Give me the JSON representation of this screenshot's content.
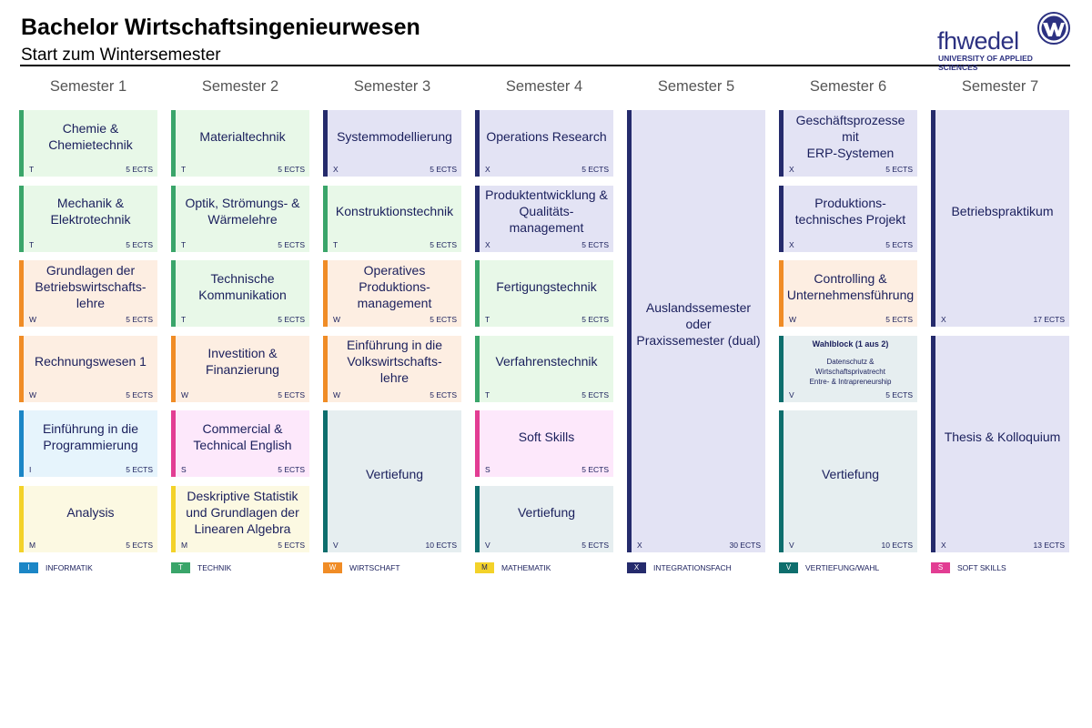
{
  "header": {
    "title": "Bachelor Wirtschaftsingenieurwesen",
    "subtitle": "Start zum Wintersemester"
  },
  "logo": {
    "wordmark": "fhwedel",
    "tagline": "UNIVERSITY OF APPLIED SCIENCES",
    "icon": "fh-wedel-emblem-icon"
  },
  "colors": {
    "I": "#1b86c6",
    "T": "#3aa56a",
    "W": "#f08c26",
    "M": "#f3d229",
    "X": "#252b6c",
    "V": "#0e6e6d",
    "S": "#e23d93"
  },
  "semesters": [
    {
      "name": "Semester 1",
      "modules": [
        {
          "title": "Chemie &\nChemietechnik",
          "code": "T",
          "ects": "5 ECTS"
        },
        {
          "title": "Mechanik &\nElektrotechnik",
          "code": "T",
          "ects": "5 ECTS"
        },
        {
          "title": "Grundlagen der\nBetriebswirtschafts-\nlehre",
          "code": "W",
          "ects": "5 ECTS"
        },
        {
          "title": "Rechnungswesen 1",
          "code": "W",
          "ects": "5 ECTS"
        },
        {
          "title": "Einführung in die\nProgrammierung",
          "code": "I",
          "ects": "5 ECTS"
        },
        {
          "title": "Analysis",
          "code": "M",
          "ects": "5 ECTS"
        }
      ]
    },
    {
      "name": "Semester 2",
      "modules": [
        {
          "title": "Materialtechnik",
          "code": "T",
          "ects": "5 ECTS"
        },
        {
          "title": "Optik, Strömungs- &\nWärmelehre",
          "code": "T",
          "ects": "5 ECTS"
        },
        {
          "title": "Technische\nKommunikation",
          "code": "T",
          "ects": "5 ECTS"
        },
        {
          "title": "Investition &\nFinanzierung",
          "code": "W",
          "ects": "5 ECTS"
        },
        {
          "title": "Commercial &\nTechnical English",
          "code": "S",
          "ects": "5 ECTS"
        },
        {
          "title": "Deskriptive Statistik\nund Grundlagen der\nLinearen Algebra",
          "code": "M",
          "ects": "5 ECTS"
        }
      ]
    },
    {
      "name": "Semester 3",
      "modules": [
        {
          "title": "Systemmodellierung",
          "code": "X",
          "ects": "5 ECTS"
        },
        {
          "title": "Konstruktionstechnik",
          "code": "T",
          "ects": "5 ECTS"
        },
        {
          "title": "Operatives\nProduktions-\nmanagement",
          "code": "W",
          "ects": "5 ECTS"
        },
        {
          "title": "Einführung in die\nVolkswirtschafts-\nlehre",
          "code": "W",
          "ects": "5 ECTS"
        },
        {
          "title": "Vertiefung",
          "code": "V",
          "ects": "10 ECTS",
          "span": 2
        }
      ]
    },
    {
      "name": "Semester 4",
      "modules": [
        {
          "title": "Operations Research",
          "code": "X",
          "ects": "5 ECTS"
        },
        {
          "title": "Produktentwicklung &\nQualitäts-\nmanagement",
          "code": "X",
          "ects": "5 ECTS"
        },
        {
          "title": "Fertigungstechnik",
          "code": "T",
          "ects": "5 ECTS"
        },
        {
          "title": "Verfahrenstechnik",
          "code": "T",
          "ects": "5 ECTS"
        },
        {
          "title": "Soft Skills",
          "code": "S",
          "ects": "5 ECTS"
        },
        {
          "title": "Vertiefung",
          "code": "V",
          "ects": "5 ECTS"
        }
      ]
    },
    {
      "name": "Semester 5",
      "modules": [
        {
          "title": "Auslandssemester\noder\nPraxissemester (dual)",
          "code": "X",
          "ects": "30 ECTS",
          "span": 6
        }
      ]
    },
    {
      "name": "Semester 6",
      "modules": [
        {
          "title": "Geschäftsprozesse mit\nERP-Systemen",
          "code": "X",
          "ects": "5 ECTS"
        },
        {
          "title": "Produktions-\ntechnisches Projekt",
          "code": "X",
          "ects": "5 ECTS"
        },
        {
          "title": "Controlling &\nUnternehmensführung",
          "code": "W",
          "ects": "5 ECTS"
        },
        {
          "title": "",
          "code": "V",
          "ects": "5 ECTS",
          "wahlblock": {
            "head": "Wahlblock (1 aus 2)",
            "items": [
              "Datenschutz &",
              "Wirtschaftsprivatrecht",
              "Entre- & Intrapreneurship"
            ]
          }
        },
        {
          "title": "Vertiefung",
          "code": "V",
          "ects": "10 ECTS",
          "span": 2
        }
      ]
    },
    {
      "name": "Semester 7",
      "modules": [
        {
          "title": "Betriebspraktikum",
          "code": "X",
          "ects": "17 ECTS",
          "span": 3
        },
        {
          "title": "Thesis & Kolloquium",
          "code": "X",
          "ects": "13 ECTS",
          "span": 3
        }
      ]
    }
  ],
  "legend": [
    {
      "code": "I",
      "label": "INFORMATIK"
    },
    {
      "code": "T",
      "label": "TECHNIK"
    },
    {
      "code": "W",
      "label": "WIRTSCHAFT"
    },
    {
      "code": "M",
      "label": "MATHEMATIK"
    },
    {
      "code": "X",
      "label": "INTEGRATIONSFACH"
    },
    {
      "code": "V",
      "label": "VERTIEFUNG/WAHL"
    },
    {
      "code": "S",
      "label": "SOFT SKILLS"
    }
  ]
}
